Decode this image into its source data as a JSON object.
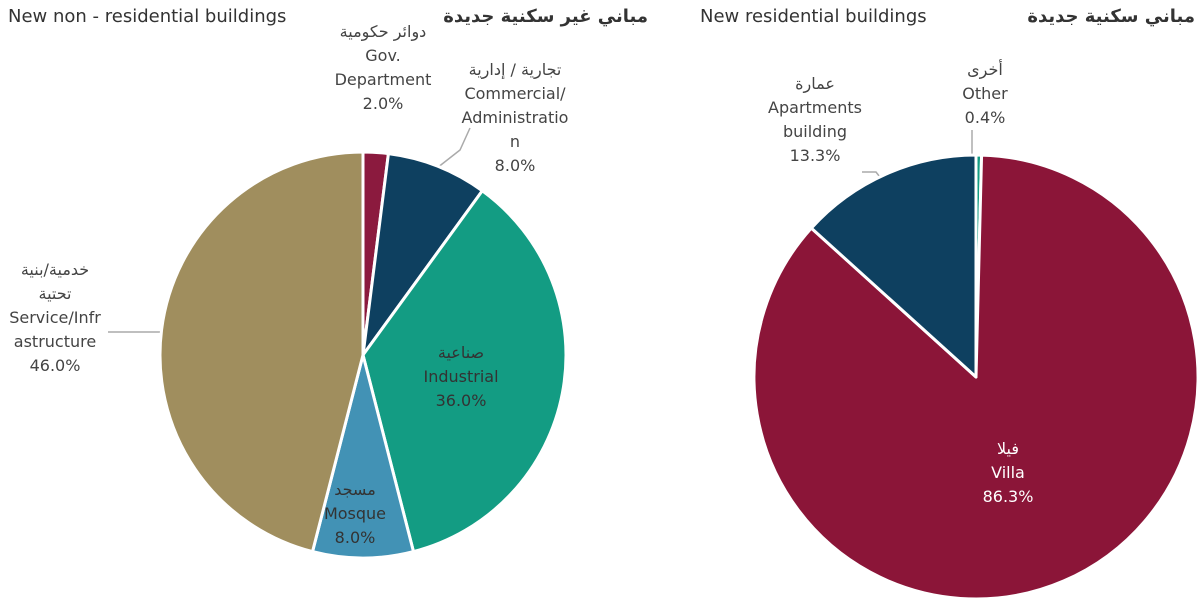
{
  "chart_data": [
    {
      "type": "pie",
      "title": "New non - residential buildings",
      "title_ar": "مباني غير سكنية جديدة",
      "categories": [
        "Gov. Department",
        "Commercial/Administration",
        "Industrial",
        "Mosque",
        "Service/Infrastructure"
      ],
      "categories_ar": [
        "دوائر حكومية",
        "تجارية / إدارية",
        "صناعية",
        "مسجد",
        "خدمية/بنية تحتية"
      ],
      "values": [
        2.0,
        8.0,
        36.0,
        8.0,
        46.0
      ],
      "value_labels": [
        "2.0%",
        "8.0%",
        "36.0%",
        "8.0%",
        "46.0%"
      ],
      "colors": [
        "#8b1a3e",
        "#0e4060",
        "#139c83",
        "#4292b5",
        "#a08e5e"
      ]
    },
    {
      "type": "pie",
      "title": "New residential buildings",
      "title_ar": "مباني سكنية جديدة",
      "categories": [
        "Other",
        "Villa",
        "Apartments building"
      ],
      "categories_ar": [
        "أخرى",
        "فيلا",
        "عمارة"
      ],
      "values": [
        0.4,
        86.3,
        13.3
      ],
      "value_labels": [
        "0.4%",
        "86.3%",
        "13.3%"
      ],
      "colors": [
        "#139c83",
        "#8b1538",
        "#0e4060"
      ]
    }
  ]
}
